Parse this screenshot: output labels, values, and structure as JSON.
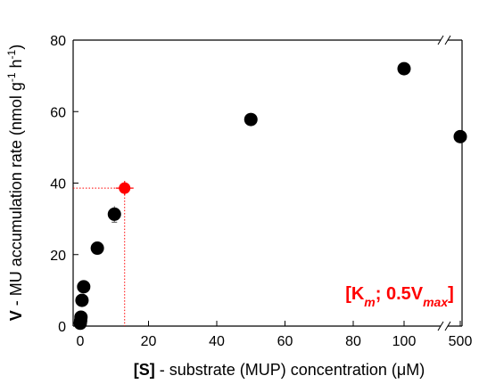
{
  "chart_data": {
    "type": "scatter",
    "xlabel": {
      "bold": "[S]",
      "rest": " - substrate (MUP) concentration (",
      "greek": "μ",
      "unit": "M)"
    },
    "ylabel": {
      "bold": "V",
      "rest": " - MU accumulation rate (nmol g",
      "sup1": "-1",
      "mid": " h",
      "sup2": "-1",
      "end": ")"
    },
    "x_axis": {
      "scale": "broken",
      "segment1_range": [
        0,
        80
      ],
      "segment2_values": [
        100,
        500
      ],
      "tick_labels": [
        "0",
        "20",
        "40",
        "60",
        "80",
        "100",
        "500"
      ]
    },
    "ylim": [
      0,
      80
    ],
    "y_tick_labels": [
      "0",
      "20",
      "40",
      "60",
      "80"
    ],
    "points": [
      {
        "x": 0,
        "y": 0.8
      },
      {
        "x": 0.1,
        "y": 1.5
      },
      {
        "x": 0.2,
        "y": 2.5
      },
      {
        "x": 0.5,
        "y": 7.2
      },
      {
        "x": 1,
        "y": 11.0
      },
      {
        "x": 5,
        "y": 21.8
      },
      {
        "x": 10,
        "y": 31.3
      },
      {
        "x": 50,
        "y": 57.8
      },
      {
        "x": 100,
        "y": 72.0
      },
      {
        "x": 500,
        "y": 53.0
      }
    ],
    "highlight_point": {
      "x": 13,
      "y": 38.6,
      "color": "#ff0000"
    },
    "annotation": {
      "open": "[K",
      "sub1": "m",
      "mid": "; 0.5V",
      "sub2": "max",
      "close": "]",
      "color": "#ff0000"
    },
    "point_color": "#000000",
    "grid": false
  }
}
